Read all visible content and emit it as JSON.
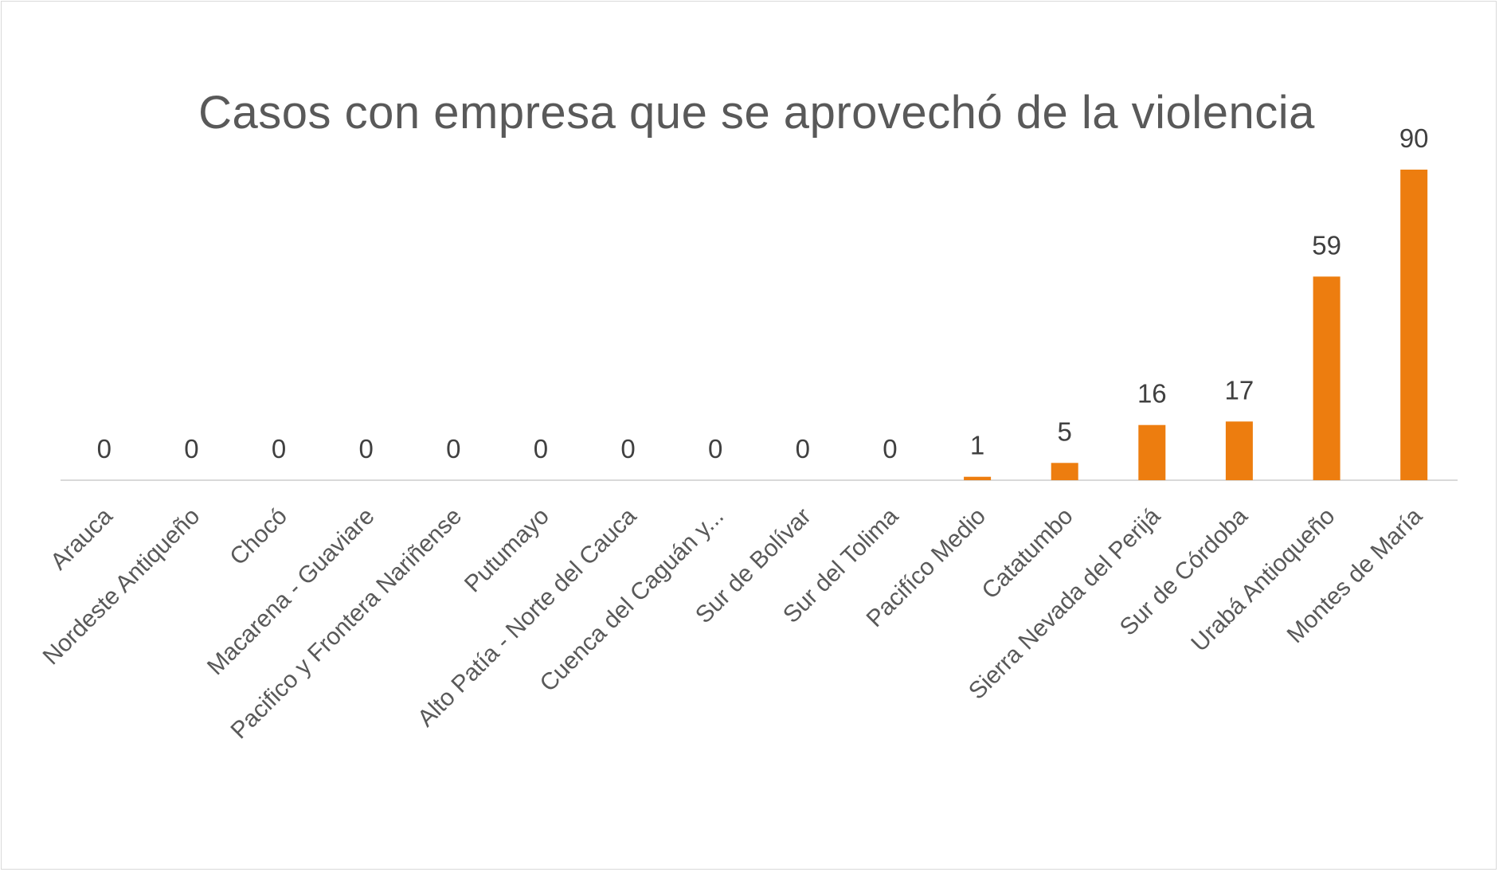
{
  "chart_data": {
    "type": "bar",
    "title": "Casos con empresa que se aprovechó de la violencia",
    "xlabel": "",
    "ylabel": "",
    "categories": [
      "Arauca",
      "Nordeste Antiqueño",
      "Chocó",
      "Macarena - Guaviare",
      "Pacifico y Frontera Nariñense",
      "Putumayo",
      "Alto Patía - Norte del Cauca",
      "Cuenca del Caguán y...",
      "Sur de Bolívar",
      "Sur del Tolima",
      "Pacifíco Medio",
      "Catatumbo",
      "Sierra Nevada del Perijá",
      "Sur de Córdoba",
      "Urabá Antioqueño",
      "Montes de María"
    ],
    "values": [
      0,
      0,
      0,
      0,
      0,
      0,
      0,
      0,
      0,
      0,
      1,
      5,
      16,
      17,
      59,
      90
    ],
    "data_labels": [
      "0",
      "0",
      "0",
      "0",
      "0",
      "0",
      "0",
      "0",
      "0",
      "0",
      "1",
      "5",
      "16",
      "17",
      "59",
      "90"
    ],
    "ylim": [
      0,
      90
    ],
    "grid": false,
    "legend": "none",
    "bar_color": "#ed7d0f",
    "axis_color": "#d9d9d9"
  }
}
